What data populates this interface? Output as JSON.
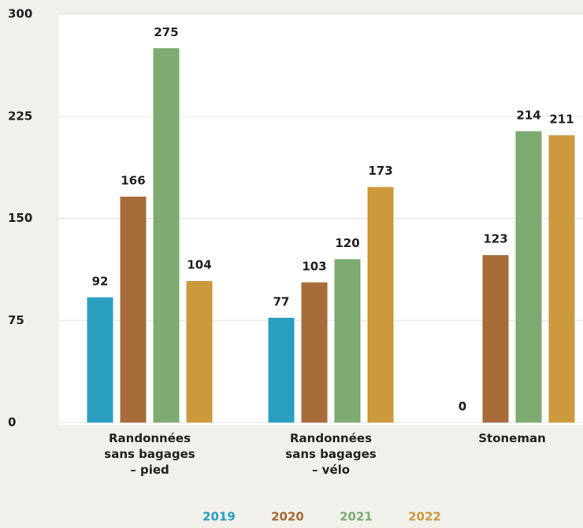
{
  "chart_data": {
    "type": "bar",
    "categories": [
      "Randonnées\nsans bagages\n– pied",
      "Randonnées\nsans bagages\n– vélo",
      "Stoneman"
    ],
    "series": [
      {
        "name": "2019",
        "color": "#2a9fc0",
        "values": [
          92,
          77,
          0
        ]
      },
      {
        "name": "2020",
        "color": "#a86b3a",
        "values": [
          166,
          103,
          123
        ]
      },
      {
        "name": "2021",
        "color": "#7dab72",
        "values": [
          275,
          120,
          214
        ]
      },
      {
        "name": "2022",
        "color": "#cc9a3c",
        "values": [
          104,
          173,
          211
        ]
      }
    ],
    "ylim": [
      0,
      300
    ],
    "yticks": [
      0,
      75,
      150,
      225,
      300
    ],
    "grid": true,
    "legend": "bottom"
  }
}
